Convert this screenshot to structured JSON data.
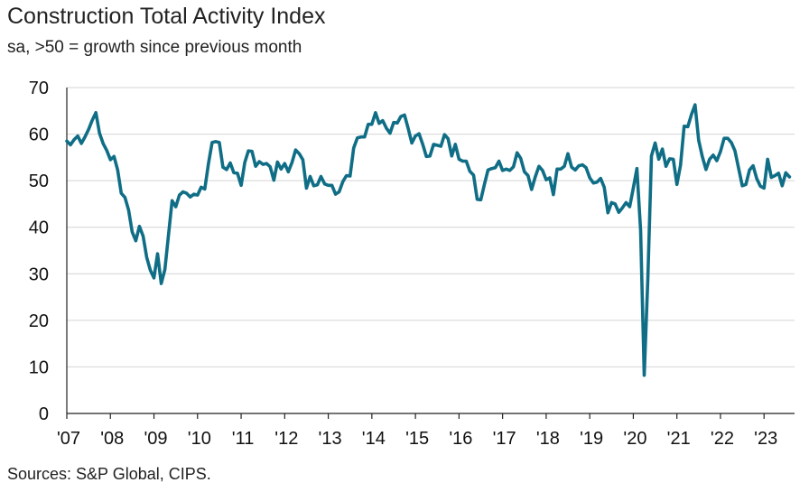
{
  "chart_data": {
    "type": "line",
    "title": "Construction Total Activity Index",
    "subtitle": "sa, >50 = growth since previous month",
    "source": "Sources: S&P Global, CIPS.",
    "xlabel": "",
    "ylabel": "",
    "ylim": [
      0,
      70
    ],
    "y_ticks": [
      0,
      10,
      20,
      30,
      40,
      50,
      60,
      70
    ],
    "x_ticks": [
      "'07",
      "'08",
      "'09",
      "'10",
      "'11",
      "'12",
      "'13",
      "'14",
      "'15",
      "'16",
      "'17",
      "'18",
      "'19",
      "'20",
      "'21",
      "'22",
      "'23"
    ],
    "grid": true,
    "line_color": "#0f6e86",
    "series": [
      {
        "x_start": "2007-01",
        "frequency": "monthly",
        "values": [
          58.5,
          57.7,
          58.8,
          59.6,
          58.0,
          59.4,
          61.0,
          63.0,
          64.6,
          60.2,
          58.0,
          56.5,
          54.5,
          55.2,
          52.3,
          47.3,
          46.4,
          43.7,
          39.0,
          37.1,
          40.2,
          38.1,
          33.5,
          30.8,
          29.1,
          34.3,
          27.9,
          30.9,
          38.3,
          45.7,
          44.4,
          46.9,
          47.6,
          47.3,
          46.5,
          47.1,
          46.9,
          48.6,
          48.2,
          53.7,
          58.2,
          58.4,
          58.2,
          52.9,
          52.4,
          53.8,
          51.7,
          51.6,
          49.0,
          53.9,
          56.4,
          56.3,
          53.1,
          54.1,
          53.5,
          53.7,
          53.0,
          50.1,
          54.0,
          52.5,
          53.7,
          51.9,
          53.9,
          56.6,
          55.8,
          54.5,
          48.4,
          50.9,
          48.9,
          49.1,
          50.9,
          49.3,
          49.0,
          49.0,
          47.1,
          47.6,
          49.8,
          51.1,
          51.0,
          57.0,
          59.2,
          59.4,
          59.4,
          62.1,
          62.1,
          64.6,
          62.3,
          62.9,
          61.3,
          60.2,
          62.5,
          62.4,
          63.8,
          64.1,
          61.2,
          58.1,
          59.6,
          60.1,
          57.8,
          55.2,
          55.3,
          57.8,
          57.6,
          57.4,
          59.9,
          59.0,
          55.3,
          57.8,
          54.6,
          54.2,
          54.2,
          52.0,
          51.2,
          46.0,
          45.9,
          49.2,
          52.3,
          52.6,
          52.8,
          54.2,
          52.2,
          52.5,
          52.2,
          53.0,
          56.0,
          54.8,
          51.9,
          51.1,
          48.1,
          50.8,
          53.1,
          52.2,
          50.2,
          50.6,
          47.0,
          52.5,
          52.5,
          53.1,
          55.8,
          52.9,
          52.3,
          53.2,
          53.4,
          52.8,
          50.6,
          49.5,
          49.7,
          50.5,
          48.6,
          43.1,
          45.3,
          45.0,
          43.2,
          44.2,
          45.3,
          44.4,
          48.4,
          52.6,
          39.3,
          8.2,
          28.9,
          55.3,
          58.1,
          54.6,
          56.8,
          53.1,
          54.7,
          54.6,
          49.2,
          53.3,
          61.7,
          61.6,
          64.2,
          66.3,
          58.7,
          55.2,
          52.4,
          54.6,
          55.5,
          54.3,
          56.3,
          59.1,
          59.1,
          58.2,
          56.4,
          52.6,
          48.9,
          49.2,
          52.3,
          53.2,
          50.4,
          48.8,
          48.4,
          54.6,
          50.7,
          51.1,
          51.6,
          48.9,
          51.7,
          50.8
        ]
      }
    ]
  }
}
